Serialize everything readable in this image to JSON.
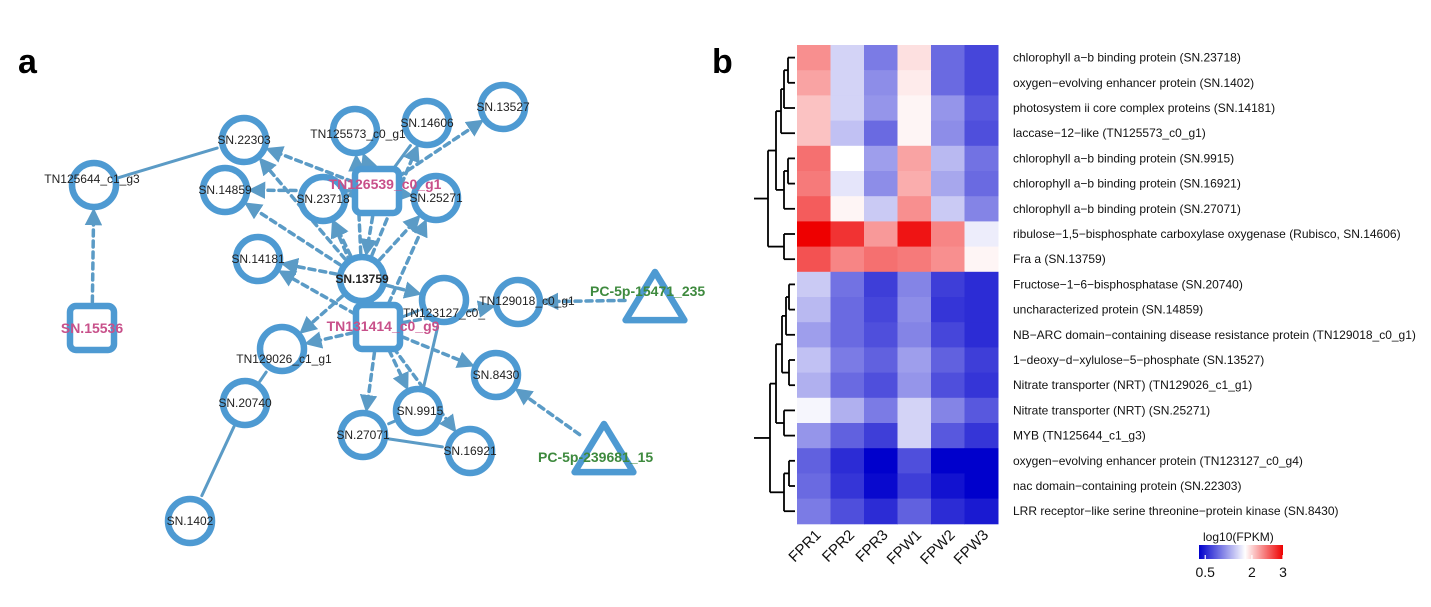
{
  "panels": {
    "a": "a",
    "b": "b"
  },
  "colors": {
    "node": "#4e9ad2",
    "edge": "#5b9bc6",
    "mirna_text": "#3e8a3e",
    "hub_text": "#c8508a",
    "heat_low": "#0000cc",
    "heat_mid": "#ffffff",
    "heat_high": "#ee0000"
  },
  "network": {
    "nodes": [
      {
        "id": "SN.22303",
        "label": "SN.22303",
        "shape": "circle",
        "label_style": "normal"
      },
      {
        "id": "TN125644_c1_g3",
        "label": "TN125644_c1_g3",
        "shape": "circle",
        "label_style": "normal"
      },
      {
        "id": "SN.14859",
        "label": "SN.14859",
        "shape": "circle",
        "label_style": "normal"
      },
      {
        "id": "TN125573_c0_g1",
        "label": "TN125573_c0_g1",
        "shape": "circle",
        "label_style": "normal"
      },
      {
        "id": "SN.14606",
        "label": "SN.14606",
        "shape": "circle",
        "label_style": "normal"
      },
      {
        "id": "SN.13527",
        "label": "SN.13527",
        "shape": "circle",
        "label_style": "normal"
      },
      {
        "id": "SN.23718",
        "label": "SN.23718",
        "shape": "circle",
        "label_style": "normal"
      },
      {
        "id": "TN126539_c0_g1",
        "label": "TN126539_c0_g1",
        "shape": "square",
        "label_style": "hub"
      },
      {
        "id": "SN.25271",
        "label": "SN.25271",
        "shape": "circle",
        "label_style": "normal"
      },
      {
        "id": "SN.14181",
        "label": "SN.14181",
        "shape": "circle",
        "label_style": "normal"
      },
      {
        "id": "SN.13759",
        "label": "SN.13759",
        "shape": "circle",
        "label_style": "bold"
      },
      {
        "id": "TN123127_c0_g4",
        "label": "TN123127_c0_",
        "shape": "circle",
        "label_style": "normal"
      },
      {
        "id": "TN129018_c0_g1",
        "label": "TN129018_c0_g1",
        "shape": "circle",
        "label_style": "normal"
      },
      {
        "id": "PC-5p-15471_235",
        "label": "PC-5p-15471_235",
        "shape": "triangle",
        "label_style": "mirna"
      },
      {
        "id": "SN.15536",
        "label": "SN.15536",
        "shape": "square",
        "label_style": "hub"
      },
      {
        "id": "TN131414_c0_g9",
        "label": "TN131414_c0_g9",
        "shape": "square",
        "label_style": "hub"
      },
      {
        "id": "TN129026_c1_g1",
        "label": "TN129026_c1_g1",
        "shape": "circle",
        "label_style": "normal"
      },
      {
        "id": "SN.8430",
        "label": "SN.8430",
        "shape": "circle",
        "label_style": "normal"
      },
      {
        "id": "SN.20740",
        "label": "SN.20740",
        "shape": "circle",
        "label_style": "normal"
      },
      {
        "id": "SN.9915",
        "label": "SN.9915",
        "shape": "circle",
        "label_style": "normal"
      },
      {
        "id": "SN.27071",
        "label": "SN.27071",
        "shape": "circle",
        "label_style": "normal"
      },
      {
        "id": "SN.16921",
        "label": "SN.16921",
        "shape": "circle",
        "label_style": "normal"
      },
      {
        "id": "PC-5p-239681_15",
        "label": "PC-5p-239681_15",
        "shape": "triangle",
        "label_style": "mirna"
      },
      {
        "id": "SN.1402",
        "label": "SN.1402",
        "shape": "circle",
        "label_style": "normal"
      }
    ],
    "edges": [
      {
        "from": "TN126539_c0_g1",
        "to": "SN.22303",
        "type": "arrow"
      },
      {
        "from": "TN126539_c0_g1",
        "to": "SN.14859",
        "type": "arrow"
      },
      {
        "from": "TN126539_c0_g1",
        "to": "TN125573_c0_g1",
        "type": "arrow"
      },
      {
        "from": "TN126539_c0_g1",
        "to": "SN.14606",
        "type": "solid"
      },
      {
        "from": "TN126539_c0_g1",
        "to": "SN.13527",
        "type": "arrow"
      },
      {
        "from": "TN126539_c0_g1",
        "to": "SN.23718",
        "type": "arrow"
      },
      {
        "from": "TN126539_c0_g1",
        "to": "SN.13759",
        "type": "arrow"
      },
      {
        "from": "TN126539_c0_g1",
        "to": "SN.25271",
        "type": "arrow"
      },
      {
        "from": "SN.13759",
        "to": "SN.22303",
        "type": "arrow"
      },
      {
        "from": "SN.13759",
        "to": "SN.14859",
        "type": "arrow"
      },
      {
        "from": "SN.13759",
        "to": "SN.23718",
        "type": "arrow"
      },
      {
        "from": "SN.13759",
        "to": "TN125573_c0_g1",
        "type": "arrow"
      },
      {
        "from": "SN.13759",
        "to": "SN.14606",
        "type": "arrow"
      },
      {
        "from": "SN.13759",
        "to": "SN.25271",
        "type": "arrow"
      },
      {
        "from": "SN.13759",
        "to": "SN.14181",
        "type": "arrow"
      },
      {
        "from": "SN.13759",
        "to": "TN123127_c0_g4",
        "type": "arrow"
      },
      {
        "from": "SN.13759",
        "to": "TN129026_c1_g1",
        "type": "arrow"
      },
      {
        "from": "TN131414_c0_g9",
        "to": "SN.13759",
        "type": "arrow"
      },
      {
        "from": "TN131414_c0_g9",
        "to": "SN.14181",
        "type": "arrow"
      },
      {
        "from": "TN131414_c0_g9",
        "to": "SN.23718",
        "type": "arrow"
      },
      {
        "from": "TN131414_c0_g9",
        "to": "SN.25271",
        "type": "arrow"
      },
      {
        "from": "TN131414_c0_g9",
        "to": "TN129026_c1_g1",
        "type": "arrow"
      },
      {
        "from": "TN131414_c0_g9",
        "to": "SN.8430",
        "type": "arrow"
      },
      {
        "from": "TN131414_c0_g9",
        "to": "SN.9915",
        "type": "arrow"
      },
      {
        "from": "TN131414_c0_g9",
        "to": "SN.27071",
        "type": "arrow"
      },
      {
        "from": "TN131414_c0_g9",
        "to": "SN.16921",
        "type": "arrow"
      },
      {
        "from": "TN131414_c0_g9",
        "to": "TN129018_c0_g1",
        "type": "arrow"
      },
      {
        "from": "TN131414_c0_g9",
        "to": "TN123127_c0_g4",
        "type": "solid"
      },
      {
        "from": "SN.9915",
        "to": "SN.27071",
        "type": "solid"
      },
      {
        "from": "SN.27071",
        "to": "SN.16921",
        "type": "solid"
      },
      {
        "from": "SN.9915",
        "to": "TN123127_c0_g4",
        "type": "solid"
      },
      {
        "from": "TN125644_c1_g3",
        "to": "SN.22303",
        "type": "solid"
      },
      {
        "from": "SN.15536",
        "to": "TN125644_c1_g3",
        "type": "arrow"
      },
      {
        "from": "PC-5p-15471_235",
        "to": "TN129018_c0_g1",
        "type": "arrow"
      },
      {
        "from": "PC-5p-239681_15",
        "to": "SN.8430",
        "type": "arrow"
      },
      {
        "from": "SN.20740",
        "to": "TN129026_c1_g1",
        "type": "solid"
      },
      {
        "from": "SN.20740",
        "to": "SN.1402",
        "type": "solid"
      }
    ]
  },
  "heatmap": {
    "columns": [
      "FPR1",
      "FPR2",
      "FPR3",
      "FPW1",
      "FPW2",
      "FPW3"
    ],
    "rows": [
      "chlorophyll a−b binding protein (SN.23718)",
      "oxygen−evolving enhancer protein (SN.1402)",
      "photosystem ii core complex proteins (SN.14181)",
      "laccase−12−like (TN125573_c0_g1)",
      "chlorophyll a−b binding protein (SN.9915)",
      "chlorophyll a−b binding protein (SN.16921)",
      "chlorophyll a−b binding protein (SN.27071)",
      "ribulose−1,5−bisphosphate carboxylase oxygenase  (Rubisco, SN.14606)",
      "Fra a (SN.13759)",
      "Fructose−1−6−bisphosphatase (SN.20740)",
      "uncharacterized protein (SN.14859)",
      "NB−ARC domain−containing disease resistance protein (TN129018_c0_g1)",
      "1−deoxy−d−xylulose−5−phosphate (SN.13527)",
      "Nitrate transporter (NRT) (TN129026_c1_g1)",
      "Nitrate transporter (NRT) (SN.25271)",
      "MYB (TN125644_c1_g3)",
      "oxygen−evolving enhancer protein (TN123127_c0_g4)",
      "nac domain−containing protein (SN.22303)",
      "LRR receptor−like serine threonine−protein kinase (SN.8430)"
    ],
    "values": [
      [
        2.3,
        1.5,
        1.0,
        1.9,
        0.9,
        0.7
      ],
      [
        2.2,
        1.5,
        1.1,
        1.85,
        0.9,
        0.7
      ],
      [
        2.05,
        1.5,
        1.15,
        1.8,
        1.15,
        0.8
      ],
      [
        2.05,
        1.4,
        0.9,
        1.8,
        1.1,
        0.75
      ],
      [
        2.45,
        1.75,
        1.2,
        2.2,
        1.35,
        0.95
      ],
      [
        2.4,
        1.6,
        1.1,
        2.15,
        1.25,
        0.9
      ],
      [
        2.55,
        1.8,
        1.45,
        2.3,
        1.45,
        1.05
      ],
      [
        3.0,
        2.75,
        2.25,
        2.9,
        2.35,
        1.65
      ],
      [
        2.6,
        2.35,
        2.45,
        2.4,
        2.3,
        1.8
      ],
      [
        1.45,
        0.95,
        0.65,
        1.05,
        0.65,
        0.55
      ],
      [
        1.35,
        0.9,
        0.7,
        1.1,
        0.6,
        0.55
      ],
      [
        1.2,
        0.9,
        0.75,
        1.05,
        0.7,
        0.55
      ],
      [
        1.4,
        1.0,
        0.85,
        1.2,
        0.85,
        0.65
      ],
      [
        1.3,
        0.9,
        0.75,
        1.15,
        0.75,
        0.6
      ],
      [
        1.7,
        1.3,
        1.0,
        1.5,
        1.05,
        0.8
      ],
      [
        1.15,
        0.85,
        0.65,
        1.5,
        0.8,
        0.6
      ],
      [
        0.85,
        0.55,
        0.3,
        0.75,
        0.3,
        0.3
      ],
      [
        0.9,
        0.6,
        0.35,
        0.65,
        0.4,
        0.3
      ],
      [
        1.0,
        0.75,
        0.55,
        0.85,
        0.55,
        0.45
      ]
    ],
    "scale": {
      "min": 0.3,
      "mid": 1.75,
      "max": 3.0
    },
    "legend": {
      "title": "log10(FPKM)",
      "ticks": [
        {
          "value": 0.5,
          "label": "0.5"
        },
        {
          "value": 2,
          "label": "2"
        },
        {
          "value": 3,
          "label": "3"
        }
      ]
    }
  }
}
